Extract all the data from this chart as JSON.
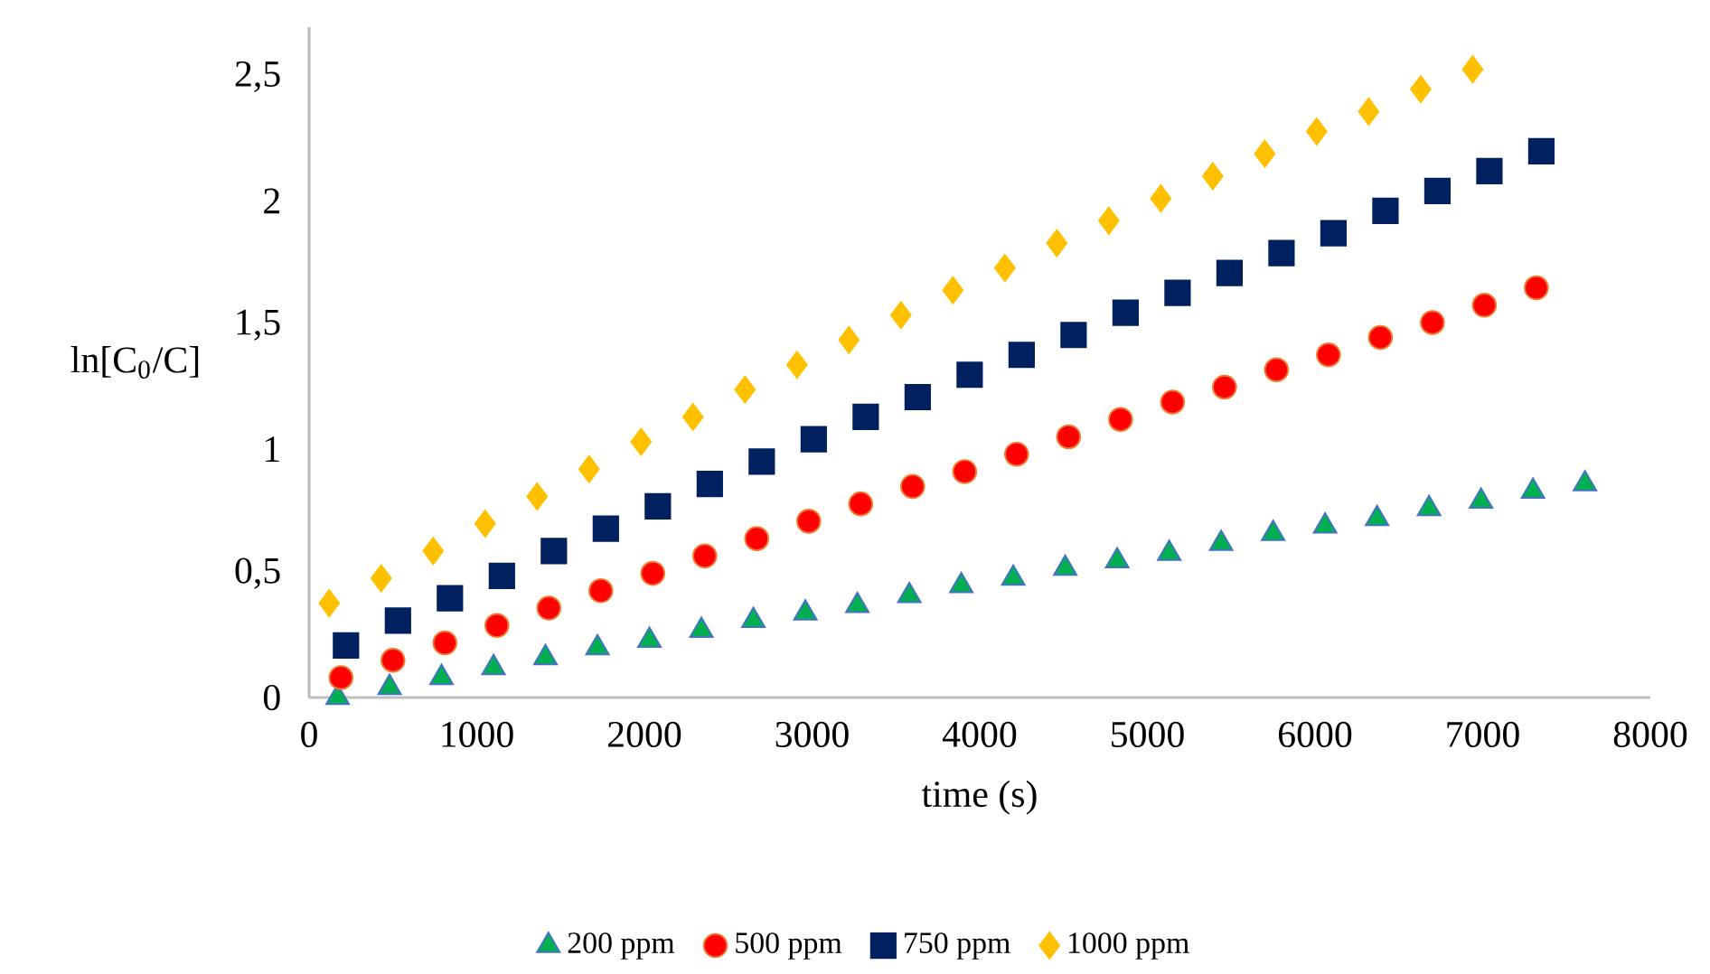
{
  "chart_data": {
    "type": "scatter",
    "xlabel": "time (s)",
    "ylabel": "ln[C$_{0}$/C]",
    "xlim": [
      0,
      8000
    ],
    "ylim": [
      0,
      2.7
    ],
    "xticks": [
      0,
      1000,
      2000,
      3000,
      4000,
      5000,
      6000,
      7000,
      8000
    ],
    "yticks": [
      0,
      {
        "value": 0.5,
        "label": "0,5"
      },
      1,
      {
        "value": 1.5,
        "label": "1,5"
      },
      2,
      {
        "value": 2.5,
        "label": "2,5"
      }
    ],
    "grid": false,
    "legend": "bottom",
    "series": [
      {
        "name": "200 ppm",
        "color": "#00b050",
        "marker": "triangle",
        "x": [
          170,
          480,
          790,
          1100,
          1410,
          1720,
          2030,
          2340,
          2650,
          2960,
          3270,
          3580,
          3890,
          4200,
          4510,
          4820,
          5130,
          5440,
          5750,
          6060,
          6370,
          6680,
          6990,
          7300,
          7610
        ],
        "values": [
          0,
          0.04,
          0.08,
          0.12,
          0.16,
          0.2,
          0.23,
          0.27,
          0.31,
          0.34,
          0.37,
          0.41,
          0.45,
          0.48,
          0.52,
          0.55,
          0.58,
          0.62,
          0.66,
          0.69,
          0.72,
          0.76,
          0.79,
          0.83,
          0.86
        ]
      },
      {
        "name": "500 ppm",
        "color": "#ff0000",
        "marker": "circle",
        "x": [
          190,
          500,
          810,
          1120,
          1430,
          1740,
          2050,
          2360,
          2670,
          2980,
          3290,
          3600,
          3910,
          4220,
          4530,
          4840,
          5150,
          5460,
          5770,
          6080,
          6390,
          6700,
          7010,
          7320
        ],
        "values": [
          0.08,
          0.15,
          0.22,
          0.29,
          0.36,
          0.43,
          0.5,
          0.57,
          0.64,
          0.71,
          0.78,
          0.85,
          0.91,
          0.98,
          1.05,
          1.12,
          1.19,
          1.25,
          1.32,
          1.38,
          1.45,
          1.51,
          1.58,
          1.65
        ]
      },
      {
        "name": "750 ppm",
        "color": "#002060",
        "marker": "square",
        "x": [
          220,
          530,
          840,
          1150,
          1460,
          1770,
          2080,
          2390,
          2700,
          3010,
          3320,
          3630,
          3940,
          4250,
          4560,
          4870,
          5180,
          5490,
          5800,
          6110,
          6420,
          6730,
          7040,
          7350
        ],
        "values": [
          0.21,
          0.31,
          0.4,
          0.49,
          0.59,
          0.68,
          0.77,
          0.86,
          0.95,
          1.04,
          1.13,
          1.21,
          1.3,
          1.38,
          1.46,
          1.55,
          1.63,
          1.71,
          1.79,
          1.87,
          1.96,
          2.04,
          2.12,
          2.2
        ]
      },
      {
        "name": "1000 ppm",
        "color": "#ffc000",
        "marker": "diamond",
        "x": [
          120,
          430,
          740,
          1050,
          1360,
          1670,
          1980,
          2290,
          2600,
          2910,
          3220,
          3530,
          3840,
          4150,
          4460,
          4770,
          5080,
          5390,
          5700,
          6010,
          6320,
          6630,
          6940
        ],
        "values": [
          0.38,
          0.48,
          0.59,
          0.7,
          0.81,
          0.92,
          1.03,
          1.13,
          1.24,
          1.34,
          1.44,
          1.54,
          1.64,
          1.73,
          1.83,
          1.92,
          2.01,
          2.1,
          2.19,
          2.28,
          2.36,
          2.45,
          2.53
        ]
      }
    ]
  }
}
